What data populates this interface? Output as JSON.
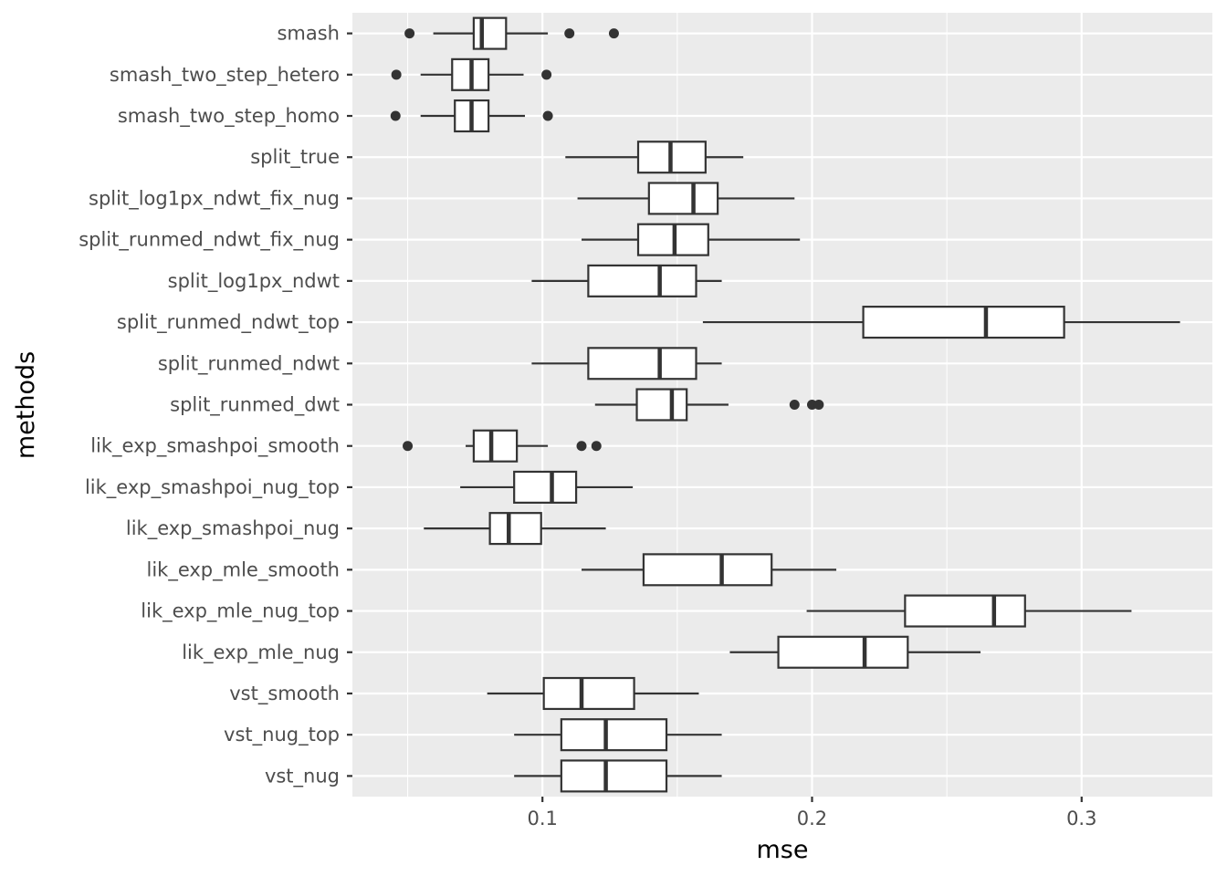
{
  "chart_data": {
    "type": "boxplot",
    "orientation": "horizontal",
    "xlabel": "mse",
    "ylabel": "methods",
    "xlim": [
      0.0295,
      0.3485
    ],
    "xticks": [
      0.1,
      0.2,
      0.3
    ],
    "xtick_labels": [
      "0.1",
      "0.2",
      "0.3"
    ],
    "x_minor_ticks": [
      0.05,
      0.15,
      0.25
    ],
    "grid": true,
    "colors": {
      "panel": "#ebebeb",
      "grid": "#ffffff",
      "box_fill": "#ffffff",
      "box_line": "#333333",
      "text": "#4d4d4d"
    },
    "series": [
      {
        "name": "smash",
        "whisker_low": 0.0595,
        "q1": 0.0745,
        "median": 0.0775,
        "q3": 0.0865,
        "whisker_high": 0.102,
        "outliers": [
          0.0507,
          0.11,
          0.1265
        ]
      },
      {
        "name": "smash_two_step_hetero",
        "whisker_low": 0.0548,
        "q1": 0.0665,
        "median": 0.0737,
        "q3": 0.08,
        "whisker_high": 0.093,
        "outliers": [
          0.0458,
          0.1015
        ]
      },
      {
        "name": "smash_two_step_homo",
        "whisker_low": 0.0548,
        "q1": 0.0675,
        "median": 0.0737,
        "q3": 0.08,
        "whisker_high": 0.0935,
        "outliers": [
          0.0455,
          0.102
        ]
      },
      {
        "name": "split_true",
        "whisker_low": 0.1085,
        "q1": 0.1355,
        "median": 0.1475,
        "q3": 0.1605,
        "whisker_high": 0.1745,
        "outliers": []
      },
      {
        "name": "split_log1px_ndwt_fix_nug",
        "whisker_low": 0.113,
        "q1": 0.1395,
        "median": 0.156,
        "q3": 0.165,
        "whisker_high": 0.1935,
        "outliers": []
      },
      {
        "name": "split_runmed_ndwt_fix_nug",
        "whisker_low": 0.1145,
        "q1": 0.1355,
        "median": 0.149,
        "q3": 0.1615,
        "whisker_high": 0.1955,
        "outliers": []
      },
      {
        "name": "split_log1px_ndwt",
        "whisker_low": 0.096,
        "q1": 0.117,
        "median": 0.1435,
        "q3": 0.157,
        "whisker_high": 0.1665,
        "outliers": []
      },
      {
        "name": "split_runmed_ndwt_top",
        "whisker_low": 0.1595,
        "q1": 0.219,
        "median": 0.2645,
        "q3": 0.2935,
        "whisker_high": 0.3365,
        "outliers": []
      },
      {
        "name": "split_runmed_ndwt",
        "whisker_low": 0.096,
        "q1": 0.117,
        "median": 0.1435,
        "q3": 0.157,
        "whisker_high": 0.1665,
        "outliers": []
      },
      {
        "name": "split_runmed_dwt",
        "whisker_low": 0.1195,
        "q1": 0.135,
        "median": 0.148,
        "q3": 0.1535,
        "whisker_high": 0.169,
        "outliers": [
          0.1935,
          0.2,
          0.2025
        ]
      },
      {
        "name": "lik_exp_smashpoi_smooth",
        "whisker_low": 0.0715,
        "q1": 0.0745,
        "median": 0.081,
        "q3": 0.0905,
        "whisker_high": 0.102,
        "outliers": [
          0.05,
          0.1145,
          0.12
        ]
      },
      {
        "name": "lik_exp_smashpoi_nug_top",
        "whisker_low": 0.0695,
        "q1": 0.0895,
        "median": 0.1035,
        "q3": 0.1125,
        "whisker_high": 0.1335,
        "outliers": []
      },
      {
        "name": "lik_exp_smashpoi_nug",
        "whisker_low": 0.056,
        "q1": 0.0805,
        "median": 0.0875,
        "q3": 0.0995,
        "whisker_high": 0.1235,
        "outliers": []
      },
      {
        "name": "lik_exp_mle_smooth",
        "whisker_low": 0.1145,
        "q1": 0.1375,
        "median": 0.1665,
        "q3": 0.185,
        "whisker_high": 0.209,
        "outliers": []
      },
      {
        "name": "lik_exp_mle_nug_top",
        "whisker_low": 0.198,
        "q1": 0.2345,
        "median": 0.2675,
        "q3": 0.279,
        "whisker_high": 0.3185,
        "outliers": []
      },
      {
        "name": "lik_exp_mle_nug",
        "whisker_low": 0.1695,
        "q1": 0.1875,
        "median": 0.2195,
        "q3": 0.2355,
        "whisker_high": 0.2625,
        "outliers": []
      },
      {
        "name": "vst_smooth",
        "whisker_low": 0.0795,
        "q1": 0.1005,
        "median": 0.1145,
        "q3": 0.134,
        "whisker_high": 0.158,
        "outliers": []
      },
      {
        "name": "vst_nug_top",
        "whisker_low": 0.0895,
        "q1": 0.107,
        "median": 0.1235,
        "q3": 0.146,
        "whisker_high": 0.1665,
        "outliers": []
      },
      {
        "name": "vst_nug",
        "whisker_low": 0.0895,
        "q1": 0.107,
        "median": 0.1235,
        "q3": 0.146,
        "whisker_high": 0.1665,
        "outliers": []
      }
    ]
  }
}
